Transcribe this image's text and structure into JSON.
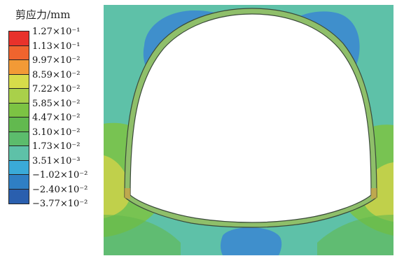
{
  "legend": {
    "title": "剪应力/mm",
    "entries": [
      {
        "label": "1.27×10⁻¹",
        "color": "#e8322b"
      },
      {
        "label": "1.13×10⁻¹",
        "color": "#f0642e"
      },
      {
        "label": "9.97×10⁻²",
        "color": "#f29a36"
      },
      {
        "label": "8.59×10⁻²",
        "color": "#d7dc4a"
      },
      {
        "label": "7.22×10⁻²",
        "color": "#a9d04a"
      },
      {
        "label": "5.85×10⁻²",
        "color": "#7cc343"
      },
      {
        "label": "4.47×10⁻²",
        "color": "#62b94f"
      },
      {
        "label": "3.10×10⁻²",
        "color": "#5cbc6c"
      },
      {
        "label": "1.73×10⁻²",
        "color": "#5ec1a8"
      },
      {
        "label": "3.51×10⁻³",
        "color": "#3aaad8"
      },
      {
        "label": "−1.02×10⁻²",
        "color": "#2f7fc4"
      },
      {
        "label": "−2.40×10⁻²",
        "color": "#2a5fae"
      },
      {
        "label": "−3.77×10⁻²",
        "color": "#24489a"
      }
    ]
  },
  "colors": {
    "background_field": "#5ec1a8",
    "blue_zone": "#3f8fcc",
    "green_zone": "#7cc343",
    "yellow_zone": "#c8d24a",
    "lining": "#8fbf6a",
    "lining_outline": "#3a4a3a",
    "cavity": "#ffffff"
  }
}
